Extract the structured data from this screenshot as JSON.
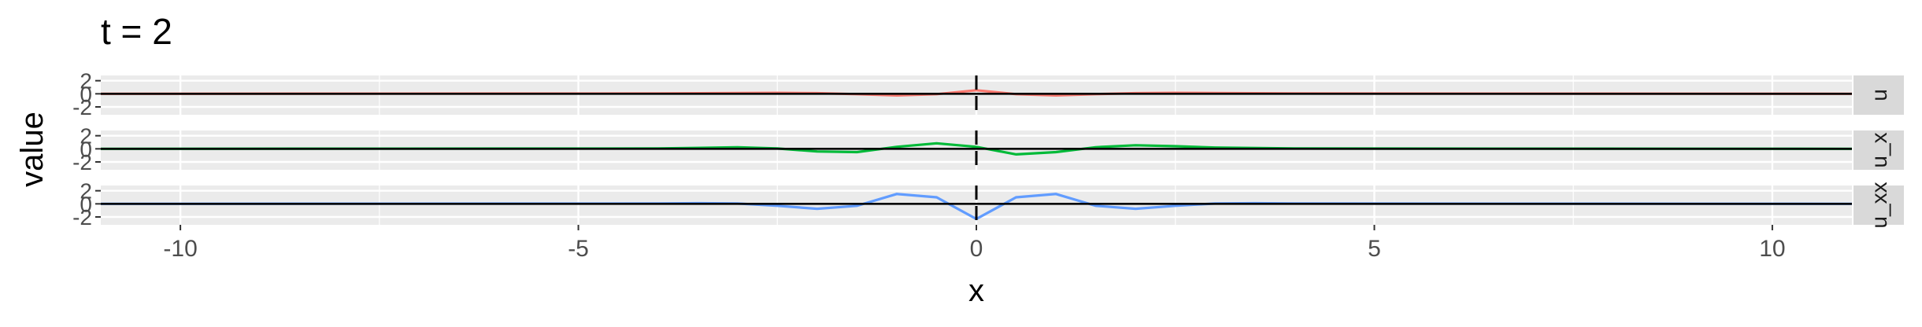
{
  "chart_data": {
    "type": "line",
    "title": "t = 2",
    "xlabel": "x",
    "ylabel": "value",
    "xlim": [
      -11,
      11
    ],
    "x_ticks": [
      -10,
      -5,
      0,
      5,
      10
    ],
    "x_tick_labels": [
      "-10",
      "-5",
      "0",
      "5",
      "10"
    ],
    "y_ticks": [
      -2,
      0,
      2
    ],
    "y_tick_labels": [
      "-2",
      "0",
      "2"
    ],
    "grid": true,
    "legend": "none",
    "reference_lines": {
      "horizontal_y": 0,
      "vertical_x": 0
    },
    "panels": [
      {
        "strip_label": "u",
        "color": "#F8766D",
        "ylim": [
          -3.2,
          2.8
        ],
        "x": [
          -11,
          -4,
          -3,
          -2.5,
          -2,
          -1.5,
          -1,
          -0.5,
          0,
          0.5,
          1,
          1.5,
          2,
          2.5,
          3,
          4,
          11
        ],
        "values": [
          0,
          0.05,
          0.12,
          0.15,
          0.1,
          -0.05,
          -0.25,
          -0.05,
          0.55,
          -0.05,
          -0.25,
          -0.05,
          0.1,
          0.15,
          0.12,
          0.05,
          0
        ]
      },
      {
        "strip_label": "u_x",
        "color": "#00BA38",
        "ylim": [
          -3.2,
          2.8
        ],
        "x": [
          -11,
          -4,
          -3,
          -2.5,
          -2,
          -1.5,
          -1,
          -0.5,
          0,
          0.5,
          1,
          1.5,
          2,
          2.5,
          3,
          4,
          11
        ],
        "values": [
          0,
          0.05,
          0.25,
          0.05,
          -0.4,
          -0.5,
          0.3,
          0.85,
          0.3,
          -0.85,
          -0.5,
          0.25,
          0.55,
          0.4,
          0.2,
          0.05,
          0
        ]
      },
      {
        "strip_label": "u_xx",
        "color": "#619CFF",
        "ylim": [
          -3.2,
          2.8
        ],
        "x": [
          -11,
          -4,
          -3.5,
          -3,
          -2.5,
          -2,
          -1.5,
          -1,
          -0.5,
          0,
          0.5,
          1,
          1.5,
          2,
          2.5,
          3,
          3.5,
          4,
          11
        ],
        "values": [
          0,
          0.05,
          0.1,
          0.05,
          -0.3,
          -0.75,
          -0.3,
          1.5,
          1.0,
          -2.3,
          1.0,
          1.5,
          -0.3,
          -0.75,
          -0.3,
          0.05,
          0.1,
          0.05,
          0
        ]
      }
    ]
  }
}
